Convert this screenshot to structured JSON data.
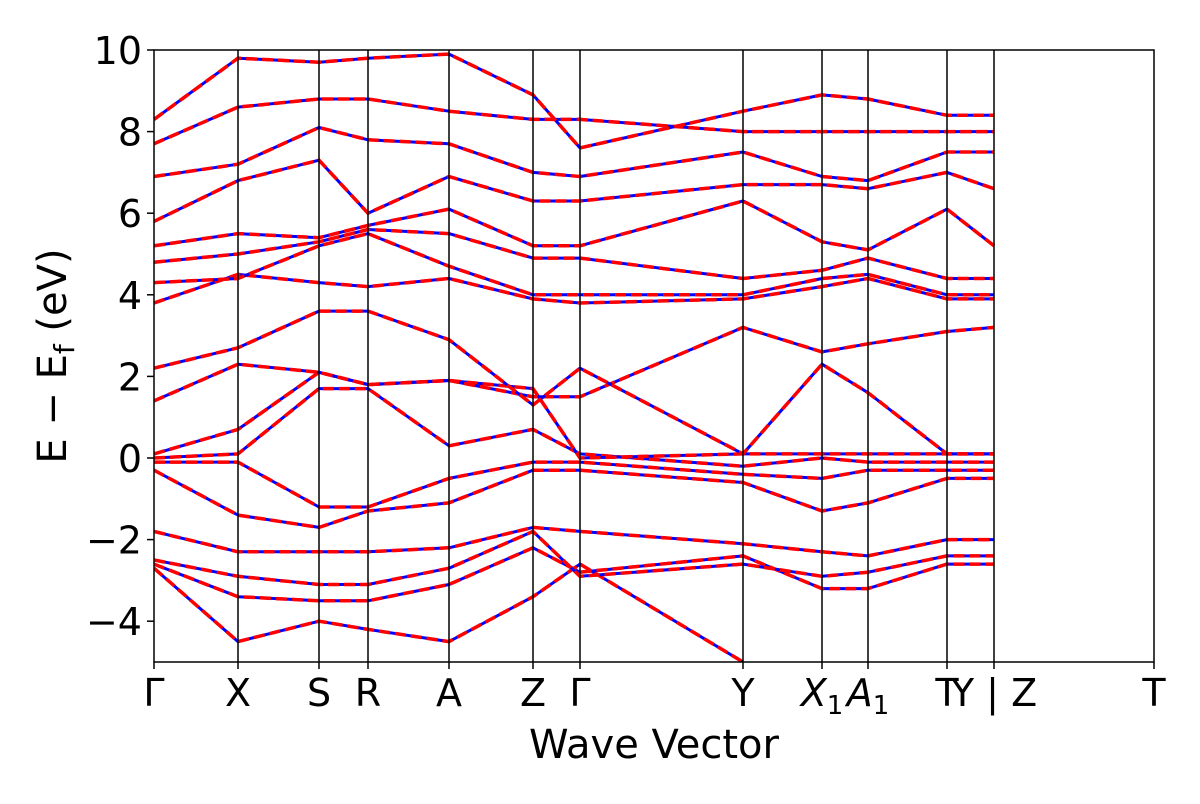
{
  "chart_data": {
    "type": "line",
    "title": "",
    "xlabel": "Wave Vector",
    "ylabel": "E − E",
    "ylabel_sub": "f",
    "ylabel_unit": " (eV)",
    "ylim": [
      -5,
      10
    ],
    "yticks": [
      -4,
      -2,
      0,
      2,
      4,
      6,
      8,
      10
    ],
    "ytick_labels": [
      "−4",
      "−2",
      "0",
      "2",
      "4",
      "6",
      "8",
      "10"
    ],
    "grid": false,
    "colors": {
      "dft": "#0000ff",
      "model": "#ff0000",
      "kline": "#000000"
    },
    "kpoints": [
      {
        "label": "Γ",
        "sub": "",
        "x": 0.0
      },
      {
        "label": "X",
        "sub": "",
        "x": 0.084
      },
      {
        "label": "S",
        "sub": "",
        "x": 0.165
      },
      {
        "label": "R",
        "sub": "",
        "x": 0.214
      },
      {
        "label": "A",
        "sub": "",
        "x": 0.295
      },
      {
        "label": "Z",
        "sub": "",
        "x": 0.379
      },
      {
        "label": "Γ",
        "sub": "",
        "x": 0.426
      },
      {
        "label": "Y",
        "sub": "",
        "x": 0.589
      },
      {
        "label": "X",
        "sub": "1",
        "x": 0.668
      },
      {
        "label": "A",
        "sub": "1",
        "x": 0.714
      },
      {
        "label": "T",
        "sub": "",
        "x": 0.793
      },
      {
        "label": "Y | Z",
        "sub": "",
        "x": 0.84
      },
      {
        "label": "T",
        "sub": "",
        "x": 1.0
      }
    ],
    "series": [
      {
        "values": [
          [
            0,
            -2.7
          ],
          [
            0.084,
            -4.5
          ],
          [
            0.165,
            -4.0
          ],
          [
            0.214,
            -4.2
          ],
          [
            0.295,
            -4.5
          ],
          [
            0.379,
            -3.4
          ],
          [
            0.426,
            -2.6
          ],
          [
            0.589,
            -5.0
          ]
        ]
      },
      {
        "values": [
          [
            0,
            -2.6
          ],
          [
            0.084,
            -3.4
          ],
          [
            0.165,
            -3.5
          ],
          [
            0.214,
            -3.5
          ],
          [
            0.295,
            -3.1
          ],
          [
            0.379,
            -2.2
          ],
          [
            0.426,
            -2.8
          ],
          [
            0.589,
            -2.4
          ],
          [
            0.668,
            -3.2
          ],
          [
            0.714,
            -3.2
          ],
          [
            0.793,
            -2.6
          ],
          [
            0.84,
            -2.6
          ]
        ]
      },
      {
        "values": [
          [
            0,
            -2.5
          ],
          [
            0.084,
            -2.9
          ],
          [
            0.165,
            -3.1
          ],
          [
            0.214,
            -3.1
          ],
          [
            0.295,
            -2.7
          ],
          [
            0.379,
            -1.8
          ],
          [
            0.426,
            -2.9
          ],
          [
            0.589,
            -2.6
          ],
          [
            0.668,
            -2.9
          ],
          [
            0.714,
            -2.8
          ],
          [
            0.793,
            -2.4
          ],
          [
            0.84,
            -2.4
          ]
        ]
      },
      {
        "values": [
          [
            0,
            -1.8
          ],
          [
            0.084,
            -2.3
          ],
          [
            0.165,
            -2.3
          ],
          [
            0.214,
            -2.3
          ],
          [
            0.295,
            -2.2
          ],
          [
            0.379,
            -1.7
          ],
          [
            0.426,
            -1.8
          ],
          [
            0.589,
            -2.1
          ],
          [
            0.668,
            -2.3
          ],
          [
            0.714,
            -2.4
          ],
          [
            0.793,
            -2.0
          ],
          [
            0.84,
            -2.0
          ]
        ]
      },
      {
        "values": [
          [
            0,
            -0.3
          ],
          [
            0.084,
            -1.4
          ],
          [
            0.165,
            -1.7
          ],
          [
            0.214,
            -1.3
          ],
          [
            0.295,
            -1.1
          ],
          [
            0.379,
            -0.3
          ],
          [
            0.426,
            -0.3
          ],
          [
            0.589,
            -0.6
          ],
          [
            0.668,
            -1.3
          ],
          [
            0.714,
            -1.1
          ],
          [
            0.793,
            -0.5
          ],
          [
            0.84,
            -0.5
          ]
        ]
      },
      {
        "values": [
          [
            0,
            -0.1
          ],
          [
            0.084,
            -0.1
          ],
          [
            0.165,
            -1.2
          ],
          [
            0.214,
            -1.2
          ],
          [
            0.295,
            -0.5
          ],
          [
            0.379,
            -0.1
          ],
          [
            0.426,
            -0.1
          ],
          [
            0.589,
            -0.4
          ],
          [
            0.668,
            -0.5
          ],
          [
            0.714,
            -0.3
          ],
          [
            0.793,
            -0.3
          ],
          [
            0.84,
            -0.3
          ]
        ]
      },
      {
        "values": [
          [
            0,
            0.0
          ],
          [
            0.084,
            0.1
          ],
          [
            0.165,
            1.7
          ],
          [
            0.214,
            1.7
          ],
          [
            0.295,
            0.3
          ],
          [
            0.379,
            0.7
          ],
          [
            0.426,
            0.1
          ],
          [
            0.589,
            -0.2
          ],
          [
            0.668,
            0.0
          ],
          [
            0.714,
            -0.1
          ],
          [
            0.793,
            -0.1
          ],
          [
            0.84,
            -0.1
          ]
        ]
      },
      {
        "values": [
          [
            0,
            0.1
          ],
          [
            0.084,
            0.7
          ],
          [
            0.165,
            2.1
          ],
          [
            0.214,
            1.8
          ],
          [
            0.295,
            1.9
          ],
          [
            0.379,
            1.7
          ],
          [
            0.426,
            0.0
          ],
          [
            0.589,
            0.1
          ],
          [
            0.668,
            0.1
          ],
          [
            0.714,
            0.1
          ],
          [
            0.793,
            0.1
          ],
          [
            0.84,
            0.1
          ]
        ]
      },
      {
        "values": [
          [
            0,
            1.4
          ],
          [
            0.084,
            2.3
          ],
          [
            0.165,
            2.1
          ],
          [
            0.214,
            1.8
          ],
          [
            0.295,
            1.9
          ],
          [
            0.379,
            1.5
          ],
          [
            0.426,
            1.5
          ],
          [
            0.589,
            3.2
          ],
          [
            0.668,
            2.6
          ],
          [
            0.714,
            2.8
          ],
          [
            0.793,
            3.1
          ],
          [
            0.84,
            3.2
          ]
        ]
      },
      {
        "values": [
          [
            0,
            2.2
          ],
          [
            0.084,
            2.7
          ],
          [
            0.165,
            3.6
          ],
          [
            0.214,
            3.6
          ],
          [
            0.295,
            2.9
          ],
          [
            0.379,
            1.3
          ],
          [
            0.426,
            2.2
          ],
          [
            0.589,
            0.1
          ],
          [
            0.668,
            2.3
          ],
          [
            0.714,
            1.6
          ],
          [
            0.793,
            0.1
          ],
          [
            0.84,
            0.1
          ]
        ]
      },
      {
        "values": [
          [
            0,
            3.8
          ],
          [
            0.084,
            4.5
          ],
          [
            0.165,
            4.3
          ],
          [
            0.214,
            4.2
          ],
          [
            0.295,
            4.4
          ],
          [
            0.379,
            3.9
          ],
          [
            0.426,
            3.8
          ],
          [
            0.589,
            3.9
          ],
          [
            0.668,
            4.2
          ],
          [
            0.714,
            4.4
          ],
          [
            0.793,
            3.9
          ],
          [
            0.84,
            3.9
          ]
        ]
      },
      {
        "values": [
          [
            0,
            4.3
          ],
          [
            0.084,
            4.4
          ],
          [
            0.165,
            5.2
          ],
          [
            0.214,
            5.5
          ],
          [
            0.295,
            4.7
          ],
          [
            0.379,
            4.0
          ],
          [
            0.426,
            4.0
          ],
          [
            0.589,
            4.0
          ],
          [
            0.668,
            4.4
          ],
          [
            0.714,
            4.5
          ],
          [
            0.793,
            4.0
          ],
          [
            0.84,
            4.0
          ]
        ]
      },
      {
        "values": [
          [
            0,
            4.8
          ],
          [
            0.084,
            5.0
          ],
          [
            0.165,
            5.3
          ],
          [
            0.214,
            5.6
          ],
          [
            0.295,
            5.5
          ],
          [
            0.379,
            4.9
          ],
          [
            0.426,
            4.9
          ],
          [
            0.589,
            4.4
          ],
          [
            0.668,
            4.6
          ],
          [
            0.714,
            4.9
          ],
          [
            0.793,
            4.4
          ],
          [
            0.84,
            4.4
          ]
        ]
      },
      {
        "values": [
          [
            0,
            5.2
          ],
          [
            0.084,
            5.5
          ],
          [
            0.165,
            5.4
          ],
          [
            0.214,
            5.7
          ],
          [
            0.295,
            6.1
          ],
          [
            0.379,
            5.2
          ],
          [
            0.426,
            5.2
          ],
          [
            0.589,
            6.3
          ],
          [
            0.668,
            5.3
          ],
          [
            0.714,
            5.1
          ],
          [
            0.793,
            6.1
          ],
          [
            0.84,
            5.2
          ]
        ]
      },
      {
        "values": [
          [
            0,
            5.8
          ],
          [
            0.084,
            6.8
          ],
          [
            0.165,
            7.3
          ],
          [
            0.214,
            6.0
          ],
          [
            0.295,
            6.9
          ],
          [
            0.379,
            6.3
          ],
          [
            0.426,
            6.3
          ],
          [
            0.589,
            6.7
          ],
          [
            0.668,
            6.7
          ],
          [
            0.714,
            6.6
          ],
          [
            0.793,
            7.0
          ],
          [
            0.84,
            6.6
          ]
        ]
      },
      {
        "values": [
          [
            0,
            6.9
          ],
          [
            0.084,
            7.2
          ],
          [
            0.165,
            8.1
          ],
          [
            0.214,
            7.8
          ],
          [
            0.295,
            7.7
          ],
          [
            0.379,
            7.0
          ],
          [
            0.426,
            6.9
          ],
          [
            0.589,
            7.5
          ],
          [
            0.668,
            6.9
          ],
          [
            0.714,
            6.8
          ],
          [
            0.793,
            7.5
          ],
          [
            0.84,
            7.5
          ]
        ]
      },
      {
        "values": [
          [
            0,
            7.7
          ],
          [
            0.084,
            8.6
          ],
          [
            0.165,
            8.8
          ],
          [
            0.214,
            8.8
          ],
          [
            0.295,
            8.5
          ],
          [
            0.379,
            8.3
          ],
          [
            0.426,
            8.3
          ],
          [
            0.589,
            8.0
          ],
          [
            0.668,
            8.0
          ],
          [
            0.714,
            8.0
          ],
          [
            0.793,
            8.0
          ],
          [
            0.84,
            8.0
          ]
        ]
      },
      {
        "values": [
          [
            0,
            8.3
          ],
          [
            0.084,
            9.8
          ],
          [
            0.165,
            9.7
          ],
          [
            0.214,
            9.8
          ],
          [
            0.295,
            9.9
          ],
          [
            0.379,
            8.9
          ],
          [
            0.426,
            7.6
          ],
          [
            0.589,
            8.5
          ],
          [
            0.668,
            8.9
          ],
          [
            0.714,
            8.8
          ],
          [
            0.793,
            8.4
          ],
          [
            0.84,
            8.4
          ]
        ]
      }
    ]
  }
}
